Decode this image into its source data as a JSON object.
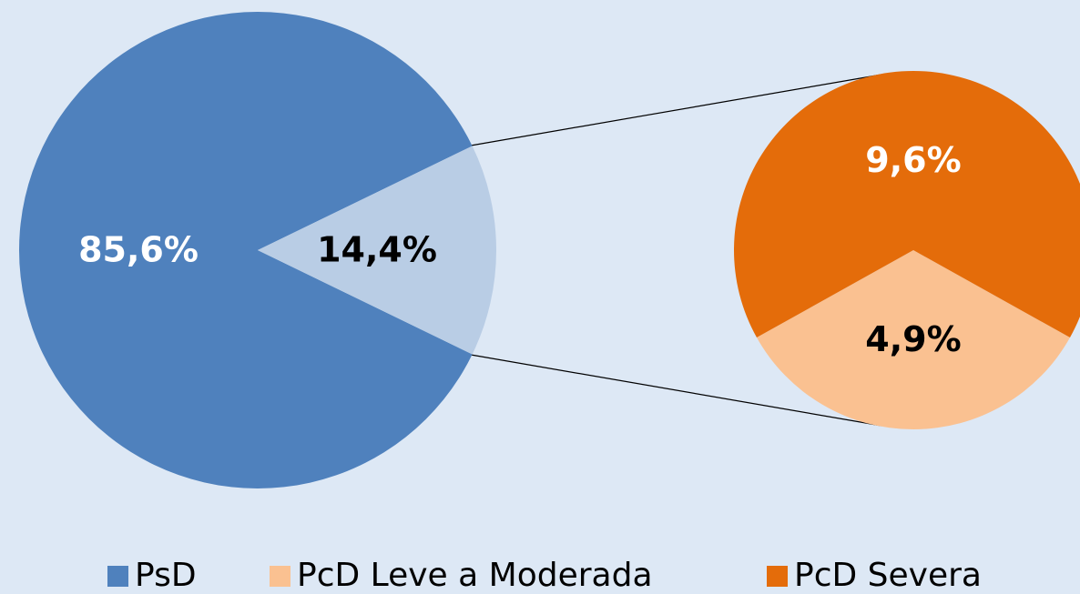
{
  "chart_data": [
    {
      "type": "pie",
      "categories": [
        "PsD",
        null
      ],
      "values": [
        85.6,
        14.4
      ],
      "value_labels": [
        "85,6%",
        "14,4%"
      ],
      "colors": [
        "#4f81bd",
        "#b9cde5"
      ],
      "label_colors": [
        "#ffffff",
        "#000000"
      ]
    },
    {
      "type": "pie",
      "categories": [
        "PcD Leve a Moderada",
        "PcD Severa"
      ],
      "values": [
        4.9,
        9.6
      ],
      "value_labels": [
        "4,9%",
        "9,6%"
      ],
      "colors": [
        "#fac191",
        "#e46c0a"
      ],
      "label_colors": [
        "#000000",
        "#ffffff"
      ]
    }
  ]
}
